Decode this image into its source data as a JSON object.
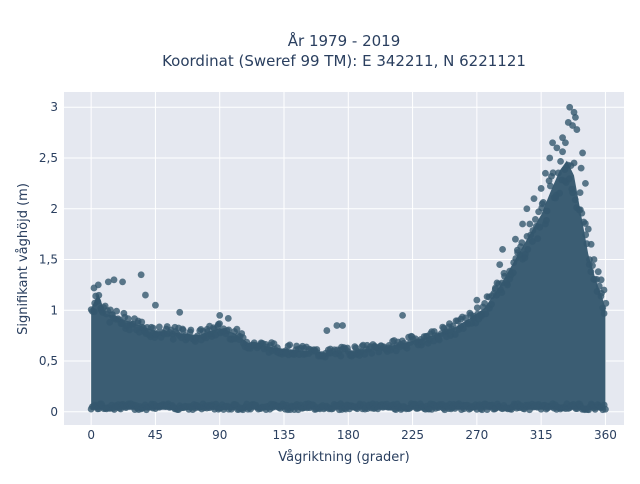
{
  "chart_data": {
    "type": "scatter",
    "title_lines": [
      "År 1979 - 2019",
      "Koordinat (Sweref 99 TM): E 342211, N 6221121"
    ],
    "xlabel": "Vågriktning (grader)",
    "ylabel": "Signifikant våghöjd (m)",
    "xlim": [
      -19,
      373
    ],
    "ylim": [
      -0.13,
      3.15
    ],
    "xticks": [
      0,
      45,
      90,
      135,
      180,
      225,
      270,
      315,
      360
    ],
    "xtick_labels": [
      "0",
      "45",
      "90",
      "135",
      "180",
      "225",
      "270",
      "315",
      "360"
    ],
    "yticks": [
      0,
      0.5,
      1,
      1.5,
      2,
      2.5,
      3
    ],
    "ytick_labels": [
      "0",
      "0,5",
      "1",
      "1,5",
      "2",
      "2,5",
      "3"
    ],
    "grid": true,
    "colors": {
      "marker": "#35586e",
      "plot_bg": "#e5e8f0",
      "grid": "#ffffff",
      "text": "#2a3f5f"
    },
    "envelope": [
      [
        0,
        1.05
      ],
      [
        5,
        1.2
      ],
      [
        10,
        1.0
      ],
      [
        20,
        0.95
      ],
      [
        30,
        0.9
      ],
      [
        45,
        0.82
      ],
      [
        60,
        0.8
      ],
      [
        75,
        0.78
      ],
      [
        90,
        0.85
      ],
      [
        100,
        0.8
      ],
      [
        110,
        0.7
      ],
      [
        125,
        0.66
      ],
      [
        135,
        0.64
      ],
      [
        150,
        0.62
      ],
      [
        165,
        0.6
      ],
      [
        180,
        0.62
      ],
      [
        195,
        0.64
      ],
      [
        210,
        0.67
      ],
      [
        225,
        0.72
      ],
      [
        240,
        0.78
      ],
      [
        255,
        0.86
      ],
      [
        265,
        0.95
      ],
      [
        275,
        1.05
      ],
      [
        285,
        1.25
      ],
      [
        295,
        1.5
      ],
      [
        305,
        1.75
      ],
      [
        315,
        2.0
      ],
      [
        322,
        2.25
      ],
      [
        328,
        2.45
      ],
      [
        333,
        2.55
      ],
      [
        338,
        2.4
      ],
      [
        343,
        2.0
      ],
      [
        348,
        1.6
      ],
      [
        353,
        1.35
      ],
      [
        358,
        1.15
      ],
      [
        360,
        1.05
      ]
    ],
    "points": [
      {
        "x": 2,
        "y": 1.22
      },
      {
        "x": 5,
        "y": 1.25
      },
      {
        "x": 12,
        "y": 1.28
      },
      {
        "x": 16,
        "y": 1.3
      },
      {
        "x": 22,
        "y": 1.28
      },
      {
        "x": 35,
        "y": 1.35
      },
      {
        "x": 38,
        "y": 1.15
      },
      {
        "x": 45,
        "y": 1.05
      },
      {
        "x": 62,
        "y": 0.98
      },
      {
        "x": 90,
        "y": 0.95
      },
      {
        "x": 96,
        "y": 0.92
      },
      {
        "x": 165,
        "y": 0.8
      },
      {
        "x": 172,
        "y": 0.85
      },
      {
        "x": 176,
        "y": 0.85
      },
      {
        "x": 218,
        "y": 0.95
      },
      {
        "x": 270,
        "y": 1.1
      },
      {
        "x": 283,
        "y": 1.22
      },
      {
        "x": 286,
        "y": 1.45
      },
      {
        "x": 288,
        "y": 1.6
      },
      {
        "x": 297,
        "y": 1.7
      },
      {
        "x": 302,
        "y": 1.85
      },
      {
        "x": 305,
        "y": 2.0
      },
      {
        "x": 310,
        "y": 2.1
      },
      {
        "x": 315,
        "y": 2.2
      },
      {
        "x": 318,
        "y": 2.35
      },
      {
        "x": 321,
        "y": 2.5
      },
      {
        "x": 323,
        "y": 2.65
      },
      {
        "x": 326,
        "y": 2.6
      },
      {
        "x": 330,
        "y": 2.7
      },
      {
        "x": 332,
        "y": 2.65
      },
      {
        "x": 334,
        "y": 2.85
      },
      {
        "x": 335,
        "y": 3.0
      },
      {
        "x": 337,
        "y": 2.82
      },
      {
        "x": 338,
        "y": 2.95
      },
      {
        "x": 339,
        "y": 2.9
      },
      {
        "x": 340,
        "y": 2.78
      },
      {
        "x": 343,
        "y": 2.4
      },
      {
        "x": 344,
        "y": 2.55
      },
      {
        "x": 346,
        "y": 2.25
      },
      {
        "x": 348,
        "y": 1.8
      },
      {
        "x": 350,
        "y": 1.65
      },
      {
        "x": 352,
        "y": 1.5
      },
      {
        "x": 355,
        "y": 1.38
      },
      {
        "x": 357,
        "y": 1.3
      },
      {
        "x": 359,
        "y": 1.2
      }
    ]
  }
}
